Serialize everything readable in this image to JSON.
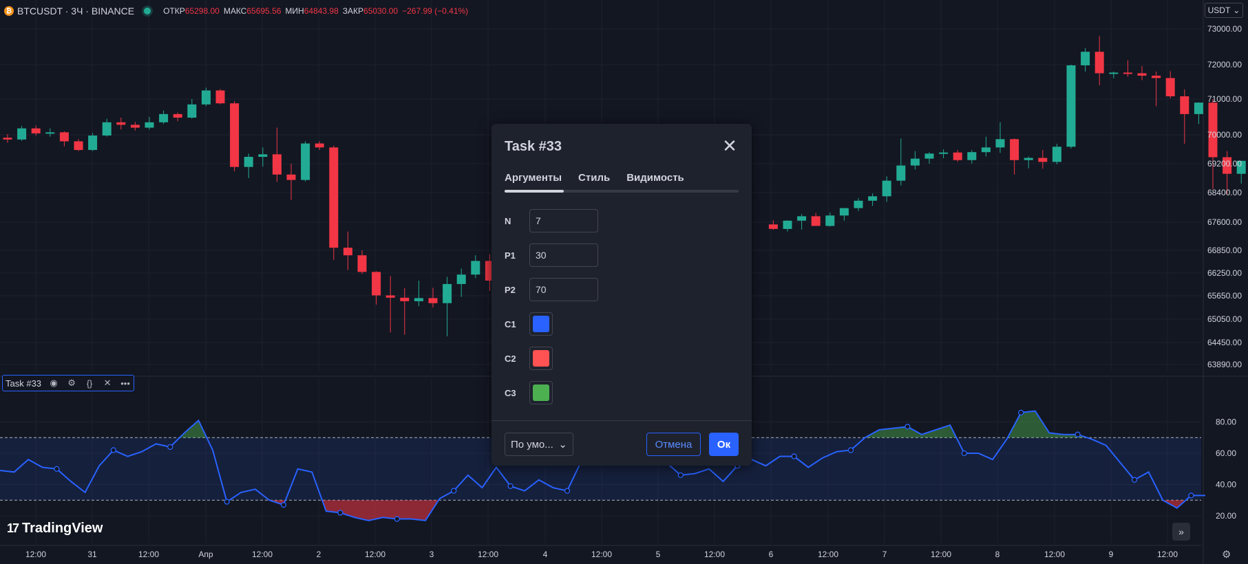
{
  "header": {
    "coin_glyph": "₿",
    "symbol": "BTCUSDT · 3Ч · BINANCE",
    "open_label": "ОТКР",
    "open_value": "65298.00",
    "high_label": "МАКС",
    "high_value": "65695.56",
    "low_label": "МИН",
    "low_value": "64843.98",
    "close_label": "ЗАКР",
    "close_value": "65030.00",
    "change": "−267.99 (−0.41%)"
  },
  "currency_select": {
    "value": "USDT",
    "icon": "chevron-down-icon"
  },
  "indicator_legend": {
    "name": "Task #33",
    "icons": [
      "eye-icon",
      "gear-icon",
      "braces-icon",
      "close-icon",
      "more-icon"
    ]
  },
  "brand": {
    "logo_mark": "17",
    "name": "TradingView"
  },
  "colors": {
    "background": "#131722",
    "up": "#22ab94",
    "down": "#f23645",
    "indicator_line": "#2962ff",
    "accent": "#2962ff"
  },
  "chart_data": [
    {
      "type": "candlestick",
      "title": "BTCUSDT · 3Ч · BINANCE",
      "ylim": [
        63500,
        73500
      ],
      "y_ticks": [
        "73000.00",
        "72000.00",
        "71000.00",
        "70000.00",
        "69200.00",
        "68400.00",
        "67600.00",
        "66850.00",
        "66250.00",
        "65650.00",
        "65050.00",
        "64450.00",
        "63890.00"
      ],
      "y_tick_values": [
        73000,
        72000,
        71000,
        70000,
        69200,
        68400,
        67600,
        66850,
        66250,
        65650,
        65050,
        64450,
        63890
      ],
      "x_ticks": [
        "12:00",
        "31",
        "12:00",
        "Апр",
        "12:00",
        "2",
        "12:00",
        "3",
        "12:00",
        "4",
        "12:00",
        "5",
        "12:00",
        "6",
        "12:00",
        "7",
        "12:00",
        "8",
        "12:00",
        "9",
        "12:00"
      ],
      "candles": [
        [
          69920,
          70020,
          69780,
          69870
        ],
        [
          69870,
          70250,
          69830,
          70180
        ],
        [
          70180,
          70260,
          69980,
          70040
        ],
        [
          70040,
          70180,
          69950,
          70070
        ],
        [
          70070,
          70100,
          69680,
          69820
        ],
        [
          69820,
          69880,
          69550,
          69580
        ],
        [
          69580,
          70050,
          69550,
          69980
        ],
        [
          69980,
          70450,
          69950,
          70350
        ],
        [
          70350,
          70480,
          70150,
          70280
        ],
        [
          70280,
          70360,
          70120,
          70200
        ],
        [
          70200,
          70500,
          70150,
          70350
        ],
        [
          70350,
          70680,
          70300,
          70580
        ],
        [
          70580,
          70620,
          70380,
          70480
        ],
        [
          70480,
          71000,
          70450,
          70850
        ],
        [
          70850,
          71330,
          70800,
          71250
        ],
        [
          71250,
          71290,
          70850,
          70880
        ],
        [
          70880,
          70940,
          68990,
          69110
        ],
        [
          69110,
          69480,
          68800,
          69390
        ],
        [
          69390,
          69650,
          69120,
          69460
        ],
        [
          69460,
          70200,
          68700,
          68900
        ],
        [
          68900,
          69200,
          68200,
          68750
        ],
        [
          68750,
          69820,
          68710,
          69760
        ],
        [
          69760,
          69820,
          69580,
          69650
        ],
        [
          69650,
          69700,
          66600,
          66920
        ],
        [
          66920,
          67350,
          66330,
          66720
        ],
        [
          66720,
          66850,
          66230,
          66280
        ],
        [
          66280,
          66300,
          65420,
          65660
        ],
        [
          65660,
          66170,
          64710,
          65600
        ],
        [
          65600,
          65850,
          64650,
          65510
        ],
        [
          65510,
          66050,
          65380,
          65590
        ],
        [
          65590,
          65860,
          65350,
          65460
        ],
        [
          65460,
          66150,
          64610,
          65960
        ],
        [
          65960,
          66370,
          65620,
          66210
        ],
        [
          66210,
          66720,
          66120,
          66570
        ],
        [
          66570,
          66750,
          65780,
          66050
        ],
        [
          66050,
          66850,
          65500,
          66640
        ],
        [
          67540,
          67650,
          67400,
          67420
        ],
        [
          67420,
          67650,
          67350,
          67640
        ],
        [
          67640,
          67820,
          67400,
          67760
        ],
        [
          67760,
          67850,
          67540,
          67500
        ],
        [
          67500,
          67860,
          67480,
          67780
        ],
        [
          67780,
          67950,
          67640,
          67980
        ],
        [
          67980,
          68250,
          67900,
          68180
        ],
        [
          68180,
          68380,
          68040,
          68300
        ],
        [
          68300,
          68850,
          68150,
          68730
        ],
        [
          68730,
          69900,
          68600,
          69150
        ],
        [
          69150,
          69550,
          69040,
          69340
        ],
        [
          69340,
          69520,
          69200,
          69480
        ],
        [
          69480,
          69600,
          69350,
          69510
        ],
        [
          69510,
          69580,
          69250,
          69300
        ],
        [
          69300,
          69580,
          69200,
          69520
        ],
        [
          69520,
          69950,
          69400,
          69650
        ],
        [
          69650,
          70350,
          69500,
          69880
        ],
        [
          69880,
          69900,
          68900,
          69300
        ],
        [
          69300,
          69400,
          69070,
          69360
        ],
        [
          69360,
          69580,
          69060,
          69250
        ],
        [
          69250,
          69750,
          69180,
          69670
        ],
        [
          69670,
          72000,
          69620,
          71980
        ],
        [
          71980,
          72460,
          71800,
          72360
        ],
        [
          72360,
          72800,
          71400,
          71750
        ],
        [
          71750,
          71800,
          71600,
          71770
        ],
        [
          71770,
          72120,
          71650,
          71750
        ],
        [
          71750,
          71960,
          71550,
          71680
        ],
        [
          71680,
          71800,
          70800,
          71610
        ],
        [
          71610,
          71810,
          71020,
          71080
        ],
        [
          71080,
          71280,
          69750,
          70580
        ],
        [
          70580,
          70910,
          70300,
          70900
        ],
        [
          70900,
          71000,
          68500,
          69380
        ],
        [
          69380,
          69550,
          68350,
          68920
        ],
        [
          68920,
          69280,
          68650,
          69280
        ]
      ]
    },
    {
      "type": "line",
      "title": "Task #33",
      "ylim": [
        12,
        94
      ],
      "y_ticks": [
        "80.00",
        "60.00",
        "40.00",
        "20.00"
      ],
      "y_tick_values": [
        80,
        60,
        40,
        20
      ],
      "levels": [
        70,
        30
      ],
      "series": [
        {
          "values": [
            49,
            48,
            56,
            51,
            50,
            42,
            35,
            52,
            62,
            58,
            61,
            66,
            64,
            73,
            81,
            62,
            29,
            35,
            37,
            30,
            27,
            50,
            48,
            23,
            22,
            19,
            17,
            19,
            18,
            18,
            17,
            31,
            36,
            46,
            38,
            51,
            39,
            36,
            43,
            38,
            36,
            55,
            58,
            60,
            55,
            60,
            58,
            54,
            46,
            47,
            50,
            42,
            52,
            56,
            52,
            58,
            58,
            51,
            57,
            61,
            62,
            70,
            75,
            76,
            77,
            72,
            75,
            78,
            60,
            60,
            56,
            69,
            86,
            87,
            73,
            72,
            72,
            69,
            65,
            54,
            43,
            48,
            30,
            25,
            33,
            33
          ]
        }
      ]
    }
  ],
  "dialog": {
    "title": "Task #33",
    "close_icon": "close-icon",
    "tabs": [
      "Аргументы",
      "Стиль",
      "Видимость"
    ],
    "fields": [
      {
        "label": "N",
        "value": "7"
      },
      {
        "label": "P1",
        "value": "30"
      },
      {
        "label": "P2",
        "value": "70"
      }
    ],
    "colors": [
      {
        "label": "C1",
        "color": "#2962ff"
      },
      {
        "label": "C2",
        "color": "#ff5252"
      },
      {
        "label": "C3",
        "color": "#4caf50"
      }
    ],
    "preset": "По умо...",
    "cancel": "Отмена",
    "ok": "Ок"
  }
}
